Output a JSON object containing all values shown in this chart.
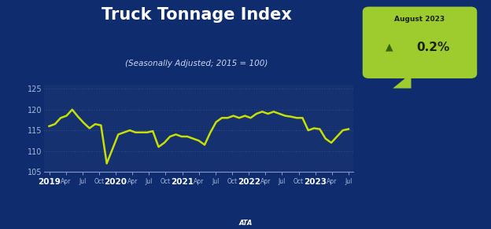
{
  "title": "Truck Tonnage Index",
  "subtitle": "(Seasonally Adjusted; 2015 = 100)",
  "badge_label": "August 2023",
  "badge_value": "0.2%",
  "background_color": "#0e2c6e",
  "plot_bg_color": "#163170",
  "line_color": "#c8e000",
  "grid_color": "#5577bb",
  "title_color": "#ffffff",
  "subtitle_color": "#ccd8f0",
  "tick_label_color": "#aabbdd",
  "year_label_color": "#ffffff",
  "badge_bg": "#9ecb2d",
  "badge_text_color": "#1a2200",
  "triangle_color": "#336600",
  "ylim": [
    105,
    126
  ],
  "yticks": [
    105,
    110,
    115,
    120,
    125
  ],
  "x_labels": [
    "2019",
    "Apr",
    "Jul",
    "Oct",
    "2020",
    "Apr",
    "Jul",
    "Oct",
    "2021",
    "Apr",
    "Jul",
    "Oct",
    "2022",
    "Apr",
    "Jul",
    "Oct",
    "2023",
    "Apr",
    "Jul"
  ],
  "x_year_indices": [
    0,
    4,
    8,
    12,
    16
  ],
  "data_y": [
    116.0,
    116.5,
    118.0,
    118.5,
    120.0,
    118.3,
    116.8,
    115.5,
    116.5,
    116.2,
    107.0,
    110.5,
    114.0,
    114.5,
    115.0,
    114.5,
    114.5,
    114.5,
    114.8,
    111.0,
    112.0,
    113.5,
    114.0,
    113.5,
    113.5,
    113.0,
    112.5,
    111.5,
    114.5,
    117.0,
    118.0,
    118.0,
    118.5,
    118.0,
    118.5,
    118.0,
    119.0,
    119.5,
    119.0,
    119.5,
    119.0,
    118.5,
    118.3,
    118.0,
    118.0,
    115.0,
    115.5,
    115.3,
    113.0,
    112.0,
    113.5,
    115.0,
    115.3
  ]
}
